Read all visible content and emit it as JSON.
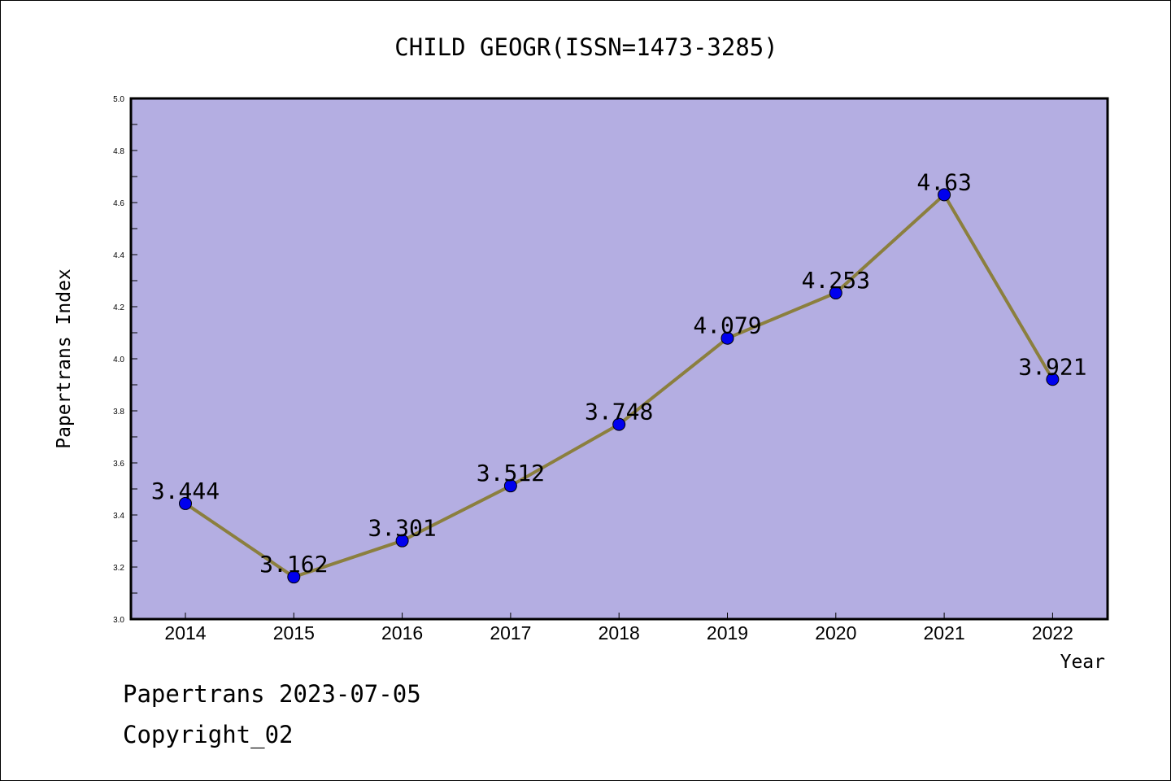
{
  "chart_data": {
    "type": "line",
    "title": "CHILD GEOGR(ISSN=1473-3285)",
    "xlabel": "Year",
    "ylabel": "Papertrans Index",
    "categories": [
      "2014",
      "2015",
      "2016",
      "2017",
      "2018",
      "2019",
      "2020",
      "2021",
      "2022"
    ],
    "values": [
      3.444,
      3.162,
      3.301,
      3.512,
      3.748,
      4.079,
      4.253,
      4.63,
      3.921
    ],
    "data_labels": [
      "3.444",
      "3.162",
      "3.301",
      "3.512",
      "3.748",
      "4.079",
      "4.253",
      "4.63",
      "3.921"
    ],
    "ylim": [
      3.0,
      5.0
    ],
    "yticks": [
      "3.0",
      "3.2",
      "3.4",
      "3.6",
      "3.8",
      "4.0",
      "4.2",
      "4.4",
      "4.6",
      "4.8",
      "5.0"
    ],
    "grid": false,
    "legend": "none",
    "colors": {
      "plot_background": "#b4aee2",
      "line": "#8b7f3e",
      "marker": "#0000ee"
    }
  },
  "footer": {
    "line1": "Papertrans 2023-07-05",
    "line2": "Copyright_02"
  }
}
